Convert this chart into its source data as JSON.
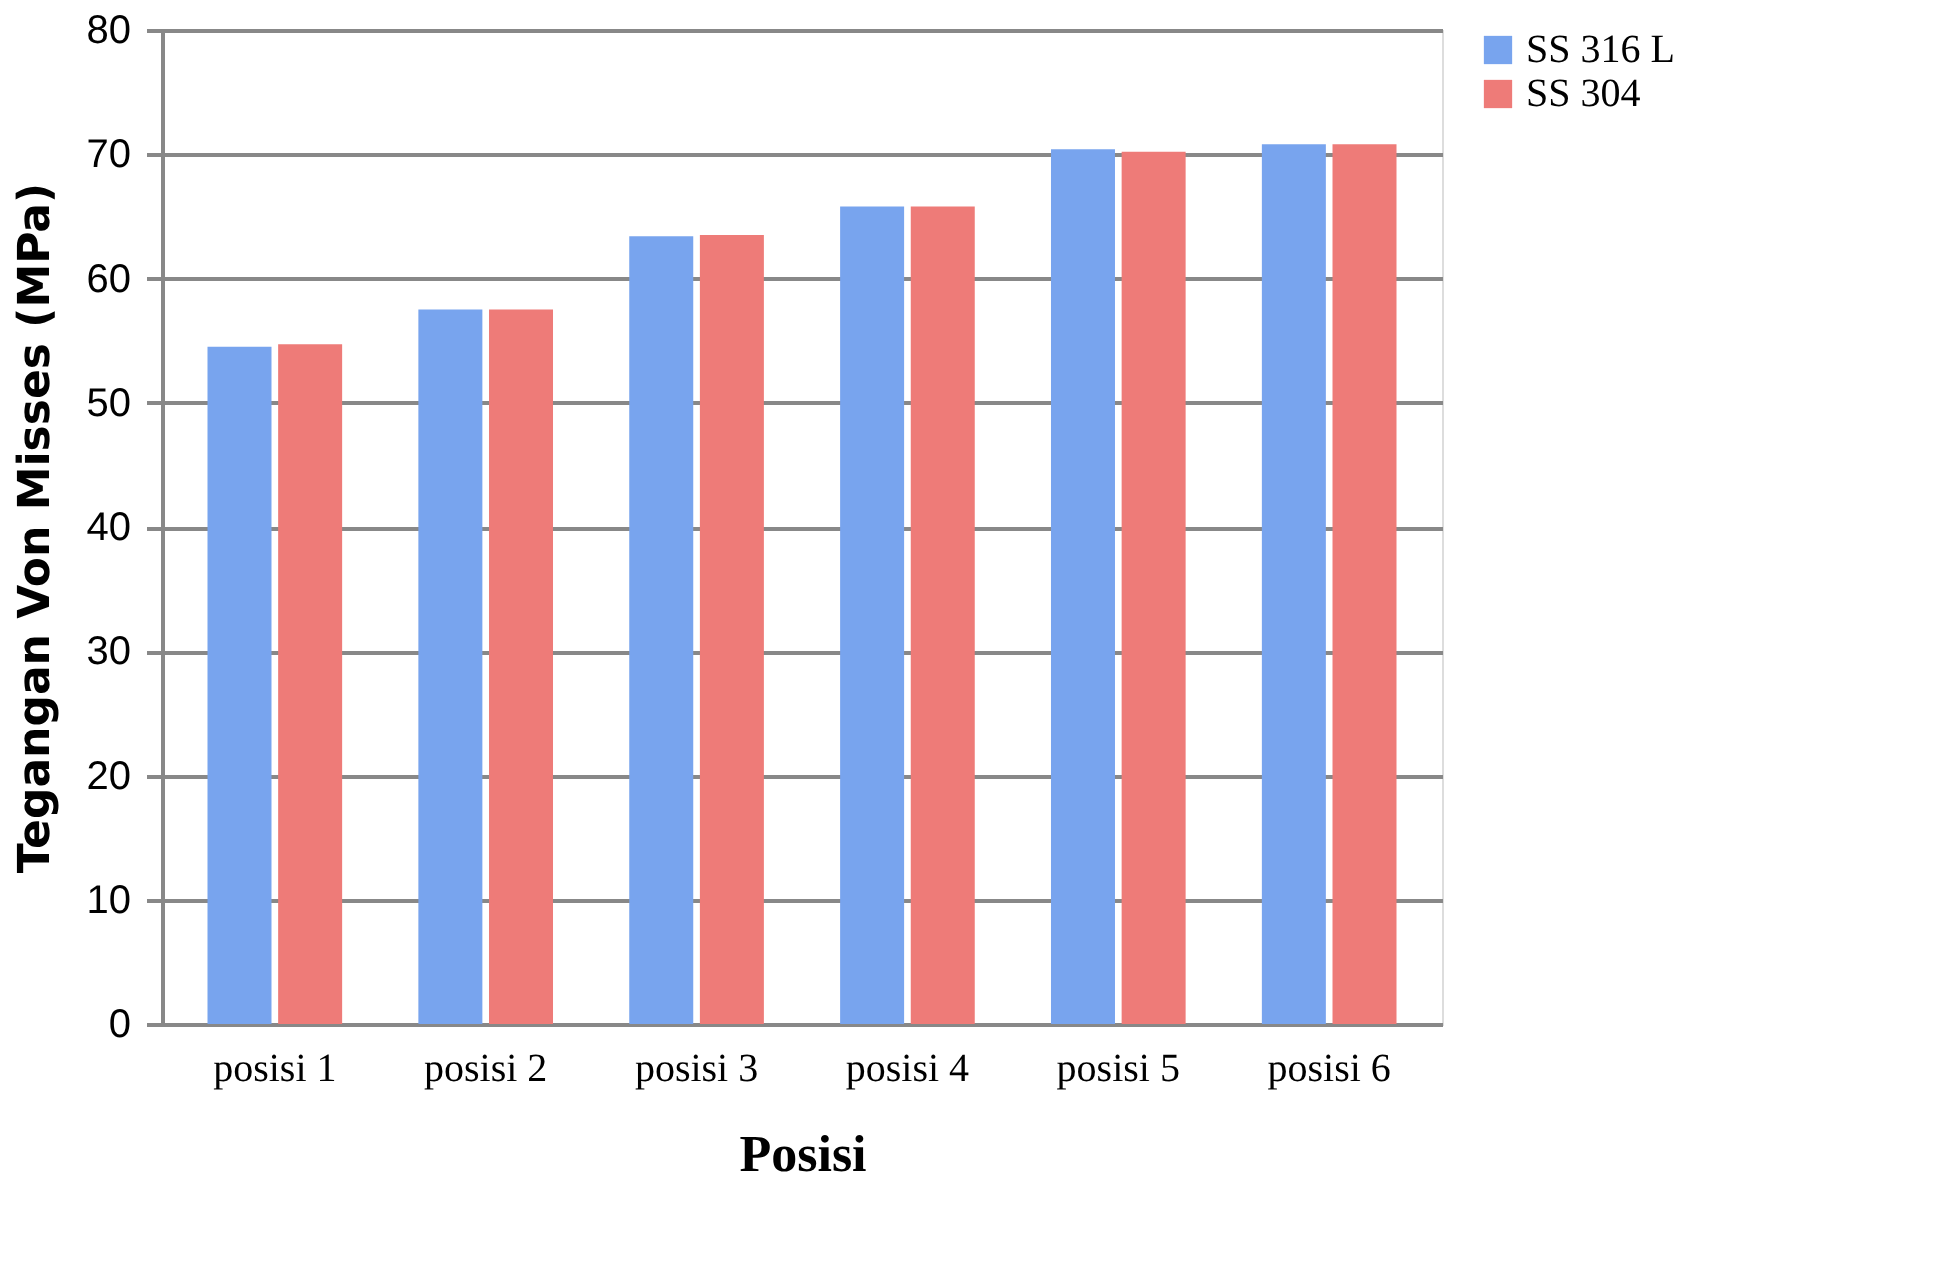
{
  "chart_data": {
    "type": "bar",
    "xlabel": "Posisi",
    "ylabel": "Tegangan Von Misses (MPa)",
    "categories": [
      "posisi 1",
      "posisi 2",
      "posisi 3",
      "posisi 4",
      "posisi 5",
      "posisi 6"
    ],
    "series": [
      {
        "name": "SS 316 L",
        "color": "#78a4ee",
        "values": [
          54.5,
          57.5,
          63.4,
          65.8,
          70.4,
          70.8
        ]
      },
      {
        "name": "SS 304",
        "color": "#ee7b78",
        "values": [
          54.7,
          57.5,
          63.5,
          65.8,
          70.2,
          70.8
        ]
      }
    ],
    "ylim": [
      0,
      80
    ],
    "yticks": [
      0,
      10,
      20,
      30,
      40,
      50,
      60,
      70,
      80
    ],
    "grid": "y",
    "legend": "right"
  }
}
